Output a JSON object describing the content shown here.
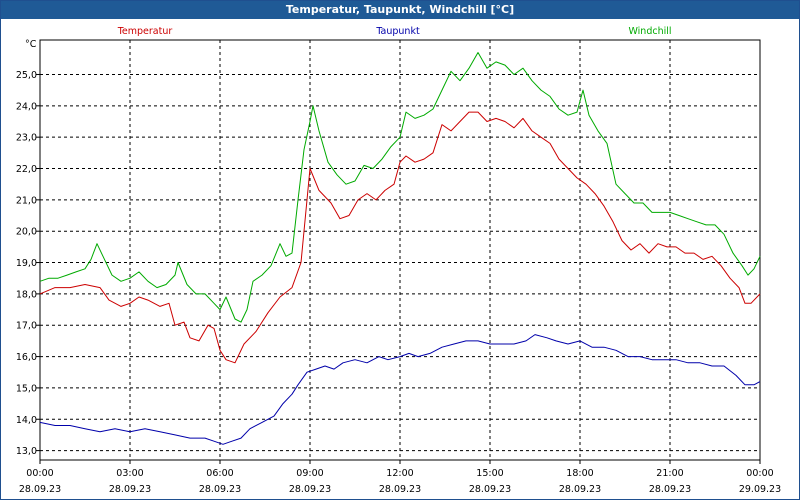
{
  "window": {
    "title": "Temperatur, Taupunkt, Windchill [°C]"
  },
  "chart_data": {
    "type": "line",
    "title": "Temperatur, Taupunkt, Windchill [°C]",
    "ylabel": "°C",
    "ylim": [
      12.7,
      26.1
    ],
    "yticks": [
      "13,0",
      "14,0",
      "15,0",
      "16,0",
      "17,0",
      "18,0",
      "19,0",
      "20,0",
      "21,0",
      "22,0",
      "23,0",
      "24,0",
      "25,0"
    ],
    "xlim": [
      0,
      24
    ],
    "xticks": [
      {
        "time": "00:00",
        "date": "28.09.23",
        "hour": 0
      },
      {
        "time": "03:00",
        "date": "28.09.23",
        "hour": 3
      },
      {
        "time": "06:00",
        "date": "28.09.23",
        "hour": 6
      },
      {
        "time": "09:00",
        "date": "28.09.23",
        "hour": 9
      },
      {
        "time": "12:00",
        "date": "28.09.23",
        "hour": 12
      },
      {
        "time": "15:00",
        "date": "28.09.23",
        "hour": 15
      },
      {
        "time": "18:00",
        "date": "28.09.23",
        "hour": 18
      },
      {
        "time": "21:00",
        "date": "28.09.23",
        "hour": 21
      },
      {
        "time": "00:00",
        "date": "29.09.23",
        "hour": 24
      }
    ],
    "grid": true,
    "series": [
      {
        "name": "Temperatur",
        "color": "#cc0000",
        "legend_pos": "left",
        "points": [
          [
            0,
            18.0
          ],
          [
            0.5,
            18.2
          ],
          [
            1,
            18.2
          ],
          [
            1.5,
            18.3
          ],
          [
            2,
            18.2
          ],
          [
            2.3,
            17.8
          ],
          [
            2.7,
            17.6
          ],
          [
            3,
            17.7
          ],
          [
            3.3,
            17.9
          ],
          [
            3.6,
            17.8
          ],
          [
            4,
            17.6
          ],
          [
            4.3,
            17.7
          ],
          [
            4.5,
            17.0
          ],
          [
            4.8,
            17.1
          ],
          [
            5.0,
            16.6
          ],
          [
            5.3,
            16.5
          ],
          [
            5.6,
            17.0
          ],
          [
            5.8,
            16.9
          ],
          [
            6.0,
            16.2
          ],
          [
            6.2,
            15.9
          ],
          [
            6.5,
            15.8
          ],
          [
            6.8,
            16.4
          ],
          [
            7.2,
            16.8
          ],
          [
            7.6,
            17.4
          ],
          [
            8,
            17.9
          ],
          [
            8.4,
            18.2
          ],
          [
            8.7,
            19.0
          ],
          [
            9.0,
            22.0
          ],
          [
            9.3,
            21.3
          ],
          [
            9.7,
            20.9
          ],
          [
            10.0,
            20.4
          ],
          [
            10.3,
            20.5
          ],
          [
            10.6,
            21.0
          ],
          [
            10.9,
            21.2
          ],
          [
            11.2,
            21.0
          ],
          [
            11.5,
            21.3
          ],
          [
            11.8,
            21.5
          ],
          [
            12.0,
            22.2
          ],
          [
            12.2,
            22.4
          ],
          [
            12.5,
            22.2
          ],
          [
            12.8,
            22.3
          ],
          [
            13.1,
            22.5
          ],
          [
            13.4,
            23.4
          ],
          [
            13.7,
            23.2
          ],
          [
            14.0,
            23.5
          ],
          [
            14.3,
            23.8
          ],
          [
            14.6,
            23.8
          ],
          [
            14.9,
            23.5
          ],
          [
            15.2,
            23.6
          ],
          [
            15.5,
            23.5
          ],
          [
            15.8,
            23.3
          ],
          [
            16.1,
            23.6
          ],
          [
            16.4,
            23.2
          ],
          [
            16.7,
            23.0
          ],
          [
            17.0,
            22.8
          ],
          [
            17.3,
            22.3
          ],
          [
            17.6,
            22.0
          ],
          [
            17.9,
            21.7
          ],
          [
            18.2,
            21.5
          ],
          [
            18.5,
            21.2
          ],
          [
            18.8,
            20.8
          ],
          [
            19.1,
            20.3
          ],
          [
            19.4,
            19.7
          ],
          [
            19.7,
            19.4
          ],
          [
            20.0,
            19.6
          ],
          [
            20.3,
            19.3
          ],
          [
            20.6,
            19.6
          ],
          [
            20.9,
            19.5
          ],
          [
            21.2,
            19.5
          ],
          [
            21.5,
            19.3
          ],
          [
            21.8,
            19.3
          ],
          [
            22.1,
            19.1
          ],
          [
            22.4,
            19.2
          ],
          [
            22.7,
            18.9
          ],
          [
            23.0,
            18.5
          ],
          [
            23.3,
            18.2
          ],
          [
            23.5,
            17.7
          ],
          [
            23.7,
            17.7
          ],
          [
            24.0,
            18.0
          ]
        ]
      },
      {
        "name": "Taupunkt",
        "color": "#0000aa",
        "legend_pos": "center",
        "points": [
          [
            0,
            13.9
          ],
          [
            0.5,
            13.8
          ],
          [
            1,
            13.8
          ],
          [
            1.5,
            13.7
          ],
          [
            2,
            13.6
          ],
          [
            2.5,
            13.7
          ],
          [
            3,
            13.6
          ],
          [
            3.5,
            13.7
          ],
          [
            4,
            13.6
          ],
          [
            4.5,
            13.5
          ],
          [
            5,
            13.4
          ],
          [
            5.5,
            13.4
          ],
          [
            5.8,
            13.3
          ],
          [
            6.1,
            13.2
          ],
          [
            6.4,
            13.3
          ],
          [
            6.7,
            13.4
          ],
          [
            7,
            13.7
          ],
          [
            7.4,
            13.9
          ],
          [
            7.8,
            14.1
          ],
          [
            8.1,
            14.5
          ],
          [
            8.4,
            14.8
          ],
          [
            8.6,
            15.1
          ],
          [
            8.9,
            15.5
          ],
          [
            9.2,
            15.6
          ],
          [
            9.5,
            15.7
          ],
          [
            9.8,
            15.6
          ],
          [
            10.1,
            15.8
          ],
          [
            10.5,
            15.9
          ],
          [
            10.9,
            15.8
          ],
          [
            11.3,
            16.0
          ],
          [
            11.6,
            15.9
          ],
          [
            12.0,
            16.0
          ],
          [
            12.3,
            16.1
          ],
          [
            12.6,
            16.0
          ],
          [
            13.0,
            16.1
          ],
          [
            13.4,
            16.3
          ],
          [
            13.8,
            16.4
          ],
          [
            14.2,
            16.5
          ],
          [
            14.6,
            16.5
          ],
          [
            15.0,
            16.4
          ],
          [
            15.4,
            16.4
          ],
          [
            15.8,
            16.4
          ],
          [
            16.2,
            16.5
          ],
          [
            16.5,
            16.7
          ],
          [
            16.9,
            16.6
          ],
          [
            17.2,
            16.5
          ],
          [
            17.6,
            16.4
          ],
          [
            18.0,
            16.5
          ],
          [
            18.4,
            16.3
          ],
          [
            18.8,
            16.3
          ],
          [
            19.2,
            16.2
          ],
          [
            19.6,
            16.0
          ],
          [
            20.0,
            16.0
          ],
          [
            20.4,
            15.9
          ],
          [
            20.8,
            15.9
          ],
          [
            21.2,
            15.9
          ],
          [
            21.6,
            15.8
          ],
          [
            22.0,
            15.8
          ],
          [
            22.4,
            15.7
          ],
          [
            22.8,
            15.7
          ],
          [
            23.2,
            15.4
          ],
          [
            23.5,
            15.1
          ],
          [
            23.8,
            15.1
          ],
          [
            24.0,
            15.2
          ]
        ]
      },
      {
        "name": "Windchill",
        "color": "#00aa00",
        "legend_pos": "right",
        "points": [
          [
            0,
            18.4
          ],
          [
            0.3,
            18.5
          ],
          [
            0.6,
            18.5
          ],
          [
            0.9,
            18.6
          ],
          [
            1.2,
            18.7
          ],
          [
            1.5,
            18.8
          ],
          [
            1.7,
            19.1
          ],
          [
            1.9,
            19.6
          ],
          [
            2.1,
            19.2
          ],
          [
            2.4,
            18.6
          ],
          [
            2.7,
            18.4
          ],
          [
            3.0,
            18.5
          ],
          [
            3.3,
            18.7
          ],
          [
            3.6,
            18.4
          ],
          [
            3.9,
            18.2
          ],
          [
            4.2,
            18.3
          ],
          [
            4.5,
            18.6
          ],
          [
            4.6,
            19.0
          ],
          [
            4.9,
            18.3
          ],
          [
            5.2,
            18.0
          ],
          [
            5.5,
            18.0
          ],
          [
            5.8,
            17.7
          ],
          [
            6.0,
            17.5
          ],
          [
            6.2,
            17.9
          ],
          [
            6.5,
            17.2
          ],
          [
            6.7,
            17.1
          ],
          [
            6.9,
            17.5
          ],
          [
            7.1,
            18.4
          ],
          [
            7.4,
            18.6
          ],
          [
            7.7,
            18.9
          ],
          [
            8.0,
            19.6
          ],
          [
            8.2,
            19.2
          ],
          [
            8.4,
            19.3
          ],
          [
            8.6,
            21.0
          ],
          [
            8.8,
            22.6
          ],
          [
            9.0,
            23.5
          ],
          [
            9.1,
            24.0
          ],
          [
            9.3,
            23.2
          ],
          [
            9.6,
            22.2
          ],
          [
            9.9,
            21.8
          ],
          [
            10.2,
            21.5
          ],
          [
            10.5,
            21.6
          ],
          [
            10.8,
            22.1
          ],
          [
            11.1,
            22.0
          ],
          [
            11.4,
            22.3
          ],
          [
            11.7,
            22.7
          ],
          [
            12.0,
            23.0
          ],
          [
            12.2,
            23.8
          ],
          [
            12.5,
            23.6
          ],
          [
            12.8,
            23.7
          ],
          [
            13.1,
            23.9
          ],
          [
            13.4,
            24.5
          ],
          [
            13.7,
            25.1
          ],
          [
            14.0,
            24.8
          ],
          [
            14.3,
            25.2
          ],
          [
            14.6,
            25.7
          ],
          [
            14.9,
            25.2
          ],
          [
            15.2,
            25.4
          ],
          [
            15.5,
            25.3
          ],
          [
            15.8,
            25.0
          ],
          [
            16.1,
            25.2
          ],
          [
            16.4,
            24.8
          ],
          [
            16.7,
            24.5
          ],
          [
            17.0,
            24.3
          ],
          [
            17.3,
            23.9
          ],
          [
            17.6,
            23.7
          ],
          [
            17.9,
            23.8
          ],
          [
            18.1,
            24.5
          ],
          [
            18.3,
            23.7
          ],
          [
            18.6,
            23.2
          ],
          [
            18.9,
            22.8
          ],
          [
            19.2,
            21.5
          ],
          [
            19.5,
            21.2
          ],
          [
            19.8,
            20.9
          ],
          [
            20.1,
            20.9
          ],
          [
            20.4,
            20.6
          ],
          [
            20.7,
            20.6
          ],
          [
            21.0,
            20.6
          ],
          [
            21.3,
            20.5
          ],
          [
            21.6,
            20.4
          ],
          [
            21.9,
            20.3
          ],
          [
            22.2,
            20.2
          ],
          [
            22.5,
            20.2
          ],
          [
            22.8,
            19.9
          ],
          [
            23.1,
            19.3
          ],
          [
            23.4,
            18.9
          ],
          [
            23.6,
            18.6
          ],
          [
            23.8,
            18.8
          ],
          [
            24.0,
            19.2
          ]
        ]
      }
    ]
  }
}
